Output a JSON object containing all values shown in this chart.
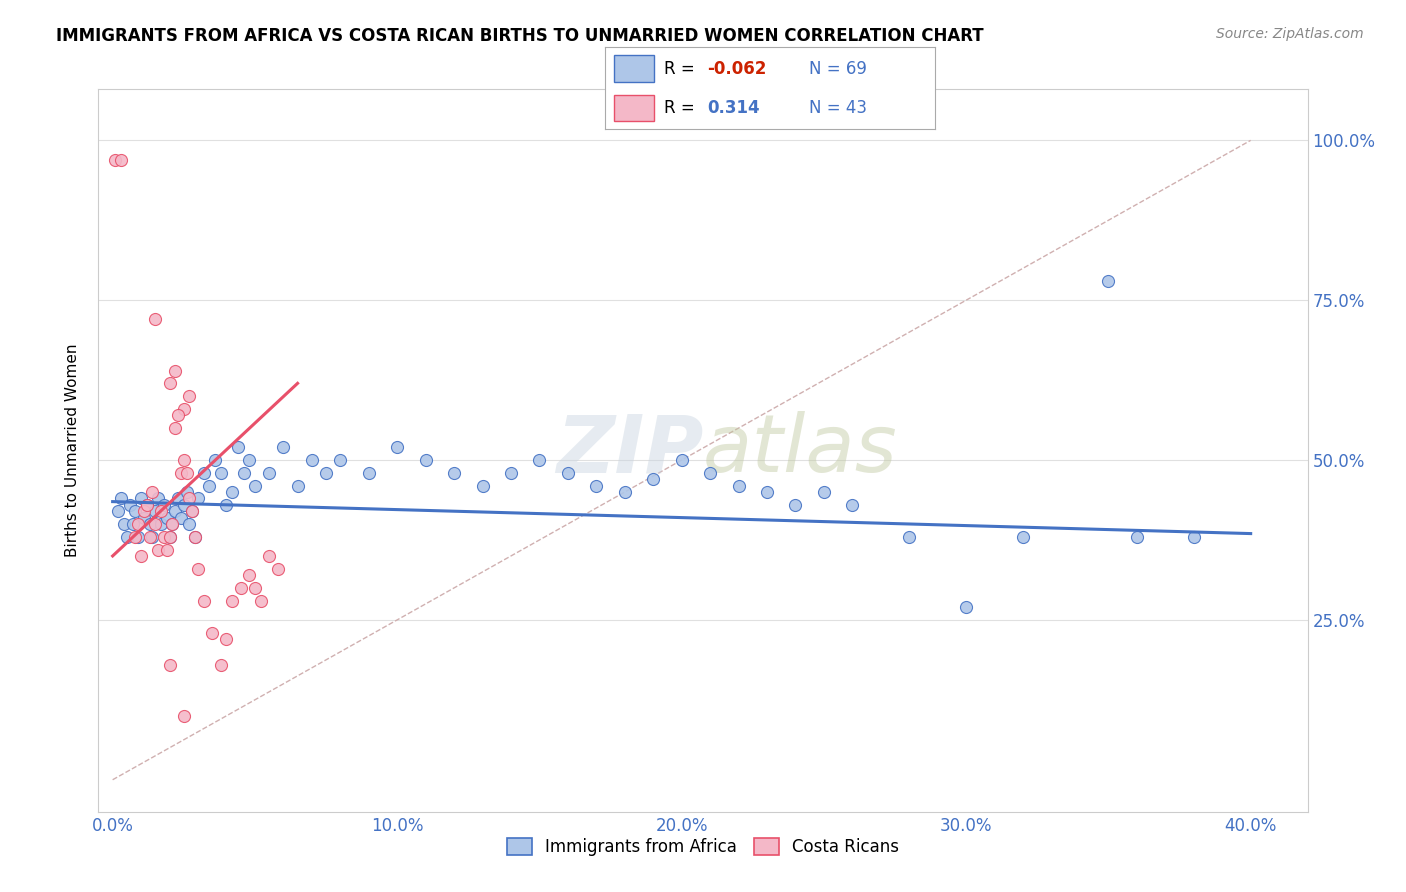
{
  "title": "IMMIGRANTS FROM AFRICA VS COSTA RICAN BIRTHS TO UNMARRIED WOMEN CORRELATION CHART",
  "source": "Source: ZipAtlas.com",
  "ylabel": "Births to Unmarried Women",
  "x_tick_vals": [
    0.0,
    10.0,
    20.0,
    30.0,
    40.0
  ],
  "x_tick_labels": [
    "0.0%",
    "10.0%",
    "20.0%",
    "30.0%",
    "40.0%"
  ],
  "y_tick_vals": [
    25.0,
    50.0,
    75.0,
    100.0
  ],
  "y_tick_labels": [
    "25.0%",
    "50.0%",
    "75.0%",
    "100.0%"
  ],
  "xlim": [
    -0.5,
    42.0
  ],
  "ylim": [
    -5.0,
    108.0
  ],
  "legend_entries": [
    {
      "label": "Immigrants from Africa",
      "R": "-0.062",
      "N": "69",
      "color": "#aec6e8",
      "line_color": "#4472c4"
    },
    {
      "label": "Costa Ricans",
      "R": "0.314",
      "N": "43",
      "color": "#f4b8c8",
      "line_color": "#e8506a"
    }
  ],
  "diagonal_color": "#d0b0b0",
  "watermark": "ZIPatlas",
  "blue_scatter": [
    [
      0.2,
      42
    ],
    [
      0.3,
      44
    ],
    [
      0.4,
      40
    ],
    [
      0.5,
      38
    ],
    [
      0.6,
      43
    ],
    [
      0.7,
      40
    ],
    [
      0.8,
      42
    ],
    [
      0.9,
      38
    ],
    [
      1.0,
      44
    ],
    [
      1.1,
      41
    ],
    [
      1.2,
      43
    ],
    [
      1.3,
      40
    ],
    [
      1.4,
      38
    ],
    [
      1.5,
      42
    ],
    [
      1.6,
      44
    ],
    [
      1.7,
      40
    ],
    [
      1.8,
      43
    ],
    [
      1.9,
      41
    ],
    [
      2.0,
      38
    ],
    [
      2.1,
      40
    ],
    [
      2.2,
      42
    ],
    [
      2.3,
      44
    ],
    [
      2.4,
      41
    ],
    [
      2.5,
      43
    ],
    [
      2.6,
      45
    ],
    [
      2.7,
      40
    ],
    [
      2.8,
      42
    ],
    [
      2.9,
      38
    ],
    [
      3.0,
      44
    ],
    [
      3.2,
      48
    ],
    [
      3.4,
      46
    ],
    [
      3.6,
      50
    ],
    [
      3.8,
      48
    ],
    [
      4.0,
      43
    ],
    [
      4.2,
      45
    ],
    [
      4.4,
      52
    ],
    [
      4.6,
      48
    ],
    [
      4.8,
      50
    ],
    [
      5.0,
      46
    ],
    [
      5.5,
      48
    ],
    [
      6.0,
      52
    ],
    [
      6.5,
      46
    ],
    [
      7.0,
      50
    ],
    [
      7.5,
      48
    ],
    [
      8.0,
      50
    ],
    [
      9.0,
      48
    ],
    [
      10.0,
      52
    ],
    [
      11.0,
      50
    ],
    [
      12.0,
      48
    ],
    [
      13.0,
      46
    ],
    [
      14.0,
      48
    ],
    [
      15.0,
      50
    ],
    [
      16.0,
      48
    ],
    [
      17.0,
      46
    ],
    [
      18.0,
      45
    ],
    [
      19.0,
      47
    ],
    [
      20.0,
      50
    ],
    [
      21.0,
      48
    ],
    [
      22.0,
      46
    ],
    [
      23.0,
      45
    ],
    [
      24.0,
      43
    ],
    [
      25.0,
      45
    ],
    [
      26.0,
      43
    ],
    [
      28.0,
      38
    ],
    [
      30.0,
      27
    ],
    [
      32.0,
      38
    ],
    [
      35.0,
      78
    ],
    [
      36.0,
      38
    ],
    [
      38.0,
      38
    ]
  ],
  "pink_scatter": [
    [
      0.1,
      97
    ],
    [
      0.3,
      97
    ],
    [
      1.5,
      72
    ],
    [
      2.0,
      62
    ],
    [
      2.2,
      64
    ],
    [
      2.5,
      58
    ],
    [
      2.7,
      60
    ],
    [
      0.8,
      38
    ],
    [
      0.9,
      40
    ],
    [
      1.0,
      35
    ],
    [
      1.1,
      42
    ],
    [
      1.2,
      43
    ],
    [
      1.3,
      38
    ],
    [
      1.4,
      45
    ],
    [
      1.5,
      40
    ],
    [
      1.6,
      36
    ],
    [
      1.7,
      42
    ],
    [
      1.8,
      38
    ],
    [
      1.9,
      36
    ],
    [
      2.0,
      38
    ],
    [
      2.1,
      40
    ],
    [
      2.2,
      55
    ],
    [
      2.3,
      57
    ],
    [
      2.4,
      48
    ],
    [
      2.5,
      50
    ],
    [
      2.6,
      48
    ],
    [
      2.7,
      44
    ],
    [
      2.8,
      42
    ],
    [
      2.9,
      38
    ],
    [
      3.0,
      33
    ],
    [
      3.2,
      28
    ],
    [
      3.5,
      23
    ],
    [
      3.8,
      18
    ],
    [
      4.0,
      22
    ],
    [
      4.2,
      28
    ],
    [
      4.5,
      30
    ],
    [
      4.8,
      32
    ],
    [
      5.0,
      30
    ],
    [
      5.2,
      28
    ],
    [
      5.5,
      35
    ],
    [
      5.8,
      33
    ],
    [
      2.0,
      18
    ],
    [
      2.5,
      10
    ]
  ],
  "blue_line_x": [
    0.0,
    40.0
  ],
  "blue_line_y": [
    43.5,
    38.5
  ],
  "pink_line_x": [
    0.0,
    6.5
  ],
  "pink_line_y": [
    35.0,
    62.0
  ]
}
